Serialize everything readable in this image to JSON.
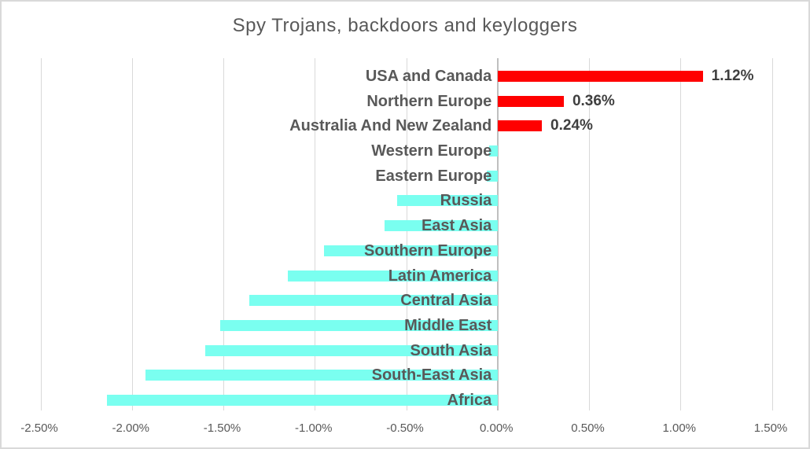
{
  "chart_data": {
    "type": "bar",
    "orientation": "horizontal",
    "title": "Spy Trojans, backdoors and keyloggers",
    "categories": [
      "USA and Canada",
      "Northern Europe",
      "Australia And New Zealand",
      "Western Europe",
      "Eastern Europe",
      "Russia",
      "East Asia",
      "Southern Europe",
      "Latin America",
      "Central Asia",
      "Middle East",
      "South Asia",
      "South-East Asia",
      "Africa"
    ],
    "values": [
      1.12,
      0.36,
      0.24,
      -0.05,
      -0.06,
      -0.55,
      -0.62,
      -0.95,
      -1.15,
      -1.36,
      -1.52,
      -1.6,
      -1.93,
      -2.14
    ],
    "data_labels": [
      "1.12%",
      "0.36%",
      "0.24%",
      "",
      "",
      "",
      "",
      "",
      "",
      "",
      "",
      "",
      "",
      ""
    ],
    "x_ticks": [
      -2.5,
      -2.0,
      -1.5,
      -1.0,
      -0.5,
      0.0,
      0.5,
      1.0,
      1.5
    ],
    "x_tick_labels": [
      "-2.50%",
      "-2.00%",
      "-1.50%",
      "-1.00%",
      "-0.50%",
      "0.00%",
      "0.50%",
      "1.00%",
      "1.50%"
    ],
    "xlim": [
      -2.5,
      1.5
    ],
    "grid": true,
    "legend": false,
    "colors": {
      "positive_bar": "#ff0000",
      "negative_bar": "#7afff0",
      "gridline": "#d9d9d9",
      "zero_line": "#bfbfbf",
      "title_text": "#595959",
      "category_text": "#595959",
      "data_label_text": "#3f3f3f",
      "tick_text": "#595959",
      "border": "#d9d9d9"
    }
  }
}
